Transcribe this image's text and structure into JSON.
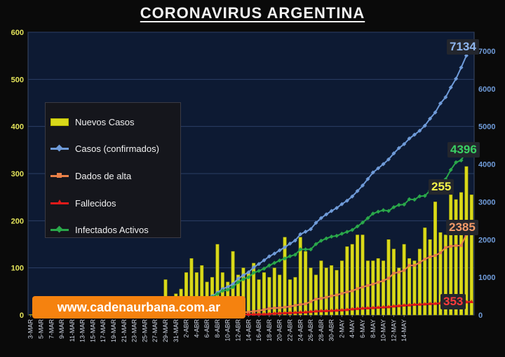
{
  "header": {
    "title": "CORONAVIRUS ARGENTINA"
  },
  "watermark": {
    "text": "www.cadenaurbana.com.ar"
  },
  "callouts": {
    "casos": "7134",
    "activos": "4396",
    "nuevos": "255",
    "alta": "2385",
    "fallecidos": "353"
  },
  "colors": {
    "nuevos": "#d9d91a",
    "casos": "#6f9bd9",
    "alta": "#e88048",
    "fallecidos": "#e01a1a",
    "activos": "#2aa84a",
    "axis_right": "#6f9bd9"
  },
  "chart_data": {
    "type": "bar",
    "title": "CORONAVIRUS ARGENTINA",
    "legend": {
      "position": "left-center"
    },
    "ylim_left": [
      0,
      600
    ],
    "yticks_left": [
      0,
      100,
      200,
      300,
      400,
      500,
      600
    ],
    "ylim_right": [
      0,
      7500
    ],
    "yticks_right": [
      0,
      1000,
      2000,
      3000,
      4000,
      5000,
      6000,
      7000
    ],
    "grid": true,
    "x_tick_labels": [
      "3-MAR",
      "5-MAR",
      "7-MAR",
      "9-MAR",
      "11-MAR",
      "13-MAR",
      "15-MAR",
      "17-MAR",
      "19-MAR",
      "21-MAR",
      "23-MAR",
      "25-MAR",
      "27-MAR",
      "29-MAR",
      "31-MAR",
      "2-ABR",
      "4-ABR",
      "6-ABR",
      "8-ABR",
      "10-ABR",
      "12-ABR",
      "14-ABR",
      "16-ABR",
      "18-ABR",
      "20-ABR",
      "22-ABR",
      "24-ABR",
      "26-ABR",
      "28-ABR",
      "30-ABR",
      "2-MAY",
      "4-MAY",
      "6-MAY",
      "8-MAY",
      "10-MAY",
      "12-MAY",
      "14-MAY"
    ],
    "series": [
      {
        "name": "Nuevos Casos",
        "axis": "left",
        "kind": "bar",
        "values": [
          1,
          0,
          0,
          0,
          0,
          0,
          1,
          0,
          2,
          2,
          2,
          8,
          3,
          1,
          10,
          4,
          12,
          4,
          17,
          14,
          31,
          14,
          14,
          12,
          18,
          23,
          75,
          20,
          45,
          55,
          90,
          120,
          90,
          105,
          70,
          80,
          150,
          90,
          70,
          135,
          85,
          100,
          90,
          110,
          75,
          90,
          80,
          100,
          85,
          165,
          75,
          80,
          165,
          135,
          100,
          85,
          115,
          100,
          105,
          95,
          115,
          145,
          150,
          170,
          170,
          115,
          115,
          120,
          115,
          160,
          140,
          100,
          150,
          120,
          115,
          140,
          185,
          160,
          240,
          175,
          170,
          255,
          245,
          260,
          315,
          255
        ]
      },
      {
        "name": "Casos (confirmados)",
        "axis": "right",
        "kind": "line",
        "marker": "diamond",
        "values": [
          1,
          1,
          1,
          1,
          1,
          2,
          8,
          12,
          17,
          19,
          21,
          31,
          34,
          45,
          56,
          65,
          79,
          97,
          128,
          158,
          225,
          266,
          301,
          387,
          502,
          589,
          690,
          745,
          820,
          966,
          1054,
          1133,
          1265,
          1353,
          1451,
          1554,
          1628,
          1715,
          1795,
          1894,
          1975,
          2142,
          2208,
          2277,
          2443,
          2571,
          2669,
          2758,
          2839,
          2941,
          3031,
          3144,
          3288,
          3435,
          3607,
          3780,
          3892,
          4003,
          4127,
          4285,
          4428,
          4532,
          4681,
          4783,
          4887,
          5020,
          5208,
          5371,
          5611,
          5776,
          6034,
          6265,
          6563,
          6879,
          7134
        ]
      },
      {
        "name": "Dados de alta",
        "axis": "right",
        "kind": "line",
        "marker": "square",
        "values": [
          0,
          0,
          0,
          0,
          0,
          0,
          0,
          0,
          0,
          0,
          0,
          0,
          0,
          0,
          0,
          0,
          0,
          0,
          0,
          0,
          1,
          3,
          3,
          5,
          16,
          23,
          31,
          52,
          62,
          72,
          80,
          97,
          116,
          143,
          173,
          186,
          190,
          206,
          224,
          254,
          280,
          296,
          356,
          419,
          441,
          469,
          505,
          530,
          570,
          610,
          640,
          698,
          740,
          782,
          818,
          867,
          909,
          975,
          1107,
          1138,
          1183,
          1315,
          1317,
          1392,
          1480,
          1542,
          1578,
          1650,
          1787,
          1823,
          1840,
          1843,
          2138,
          2385
        ]
      },
      {
        "name": "Fallecidos",
        "axis": "right",
        "kind": "line",
        "marker": "triangle",
        "values": [
          0,
          0,
          0,
          0,
          1,
          1,
          2,
          2,
          2,
          2,
          2,
          2,
          2,
          3,
          3,
          3,
          4,
          4,
          4,
          4,
          4,
          4,
          4,
          6,
          6,
          8,
          13,
          16,
          19,
          21,
          23,
          25,
          30,
          42,
          48,
          53,
          57,
          64,
          71,
          77,
          89,
          101,
          108,
          111,
          115,
          123,
          132,
          141,
          158,
          169,
          179,
          185,
          192,
          201,
          208,
          216,
          234,
          243,
          260,
          264,
          279,
          282,
          289,
          299,
          303,
          314,
          319,
          323,
          328,
          334,
          345,
          353
        ]
      },
      {
        "name": "Infectados Activos",
        "axis": "right",
        "kind": "line",
        "marker": "diamond",
        "values": [
          1,
          1,
          1,
          1,
          1,
          2,
          8,
          12,
          17,
          19,
          21,
          31,
          34,
          45,
          56,
          65,
          79,
          97,
          128,
          158,
          220,
          255,
          290,
          372,
          478,
          558,
          642,
          670,
          740,
          870,
          950,
          1000,
          1120,
          1170,
          1230,
          1315,
          1380,
          1445,
          1500,
          1560,
          1600,
          1740,
          1740,
          1740,
          1880,
          1970,
          2030,
          2080,
          2100,
          2155,
          2205,
          2255,
          2350,
          2450,
          2570,
          2690,
          2740,
          2780,
          2760,
          2860,
          2920,
          2930,
          3070,
          3060,
          3150,
          3160,
          3300,
          3400,
          3500,
          3600,
          3850,
          4050,
          4100,
          4350,
          4396
        ]
      }
    ]
  }
}
